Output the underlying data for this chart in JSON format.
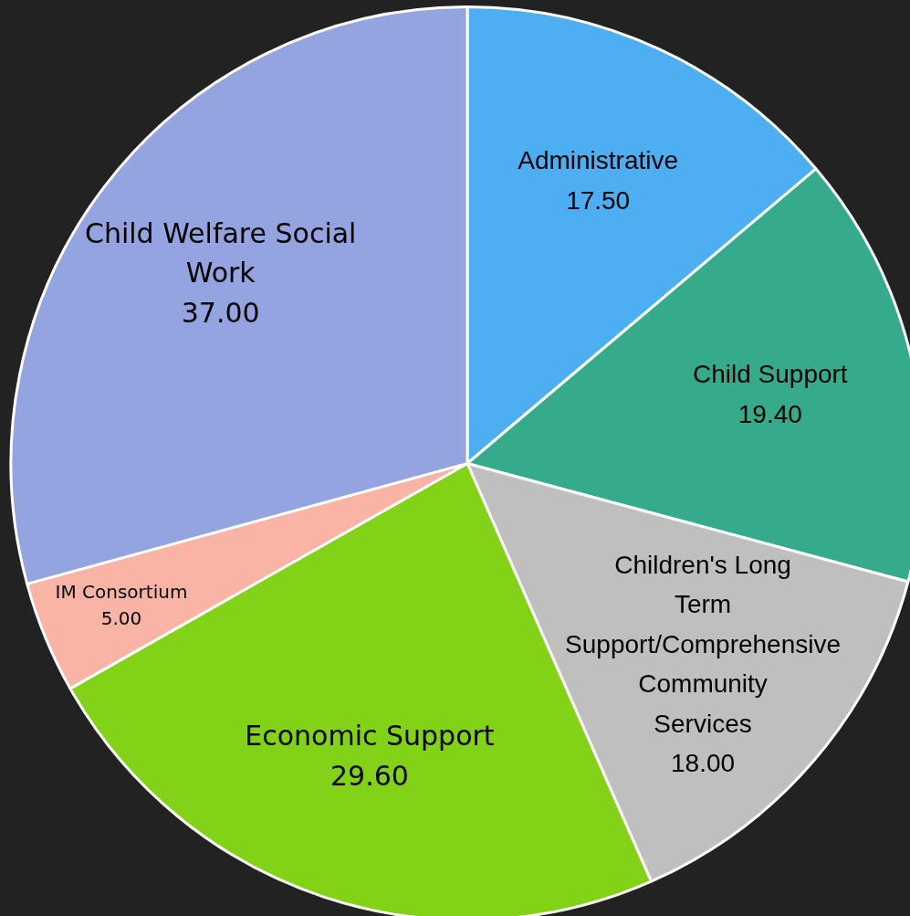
{
  "chart_data": {
    "type": "pie",
    "categories": [
      "Administrative",
      "Child Support",
      "Children's Long Term Support/Comprehensive Community Services",
      "Economic Support",
      "IM Consortium",
      "Child Welfare Social Work"
    ],
    "values": [
      17.5,
      19.4,
      18.0,
      29.6,
      5.0,
      37.0
    ],
    "value_labels": [
      "17.50",
      "19.40",
      "18.00",
      "29.60",
      "5.00",
      "37.00"
    ],
    "colors": [
      "#4eaef2",
      "#36ab8c",
      "#bfbfbf",
      "#82d318",
      "#f9b4a6",
      "#94a4e0"
    ],
    "legend": false
  }
}
